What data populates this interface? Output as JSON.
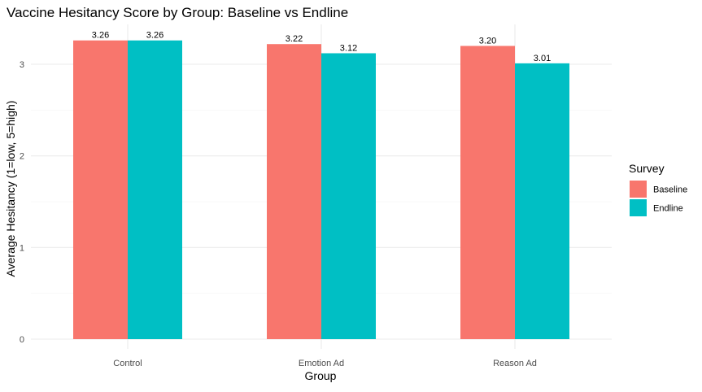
{
  "chart_data": {
    "type": "bar",
    "title": "Vaccine Hesitancy Score by Group: Baseline vs Endline",
    "xlabel": "Group",
    "ylabel": "Average Hesitancy (1=low, 5=high)",
    "categories": [
      "Control",
      "Emotion Ad",
      "Reason Ad"
    ],
    "series": [
      {
        "name": "Baseline",
        "color": "#F8766D",
        "values": [
          3.26,
          3.22,
          3.2
        ],
        "labels": [
          "3.26",
          "3.22",
          "3.20"
        ]
      },
      {
        "name": "Endline",
        "color": "#00BFC4",
        "values": [
          3.26,
          3.12,
          3.01
        ],
        "labels": [
          "3.26",
          "3.12",
          "3.01"
        ]
      }
    ],
    "ylim": [
      0,
      3.3
    ],
    "yticks": [
      0,
      1,
      2,
      3
    ],
    "yticks_minor": [
      0.5,
      1.5,
      2.5
    ],
    "ytick_labels": [
      "0",
      "1",
      "2",
      "3"
    ],
    "grid": true,
    "legend": {
      "title": "Survey",
      "position": "right",
      "items": [
        "Baseline",
        "Endline"
      ]
    }
  }
}
